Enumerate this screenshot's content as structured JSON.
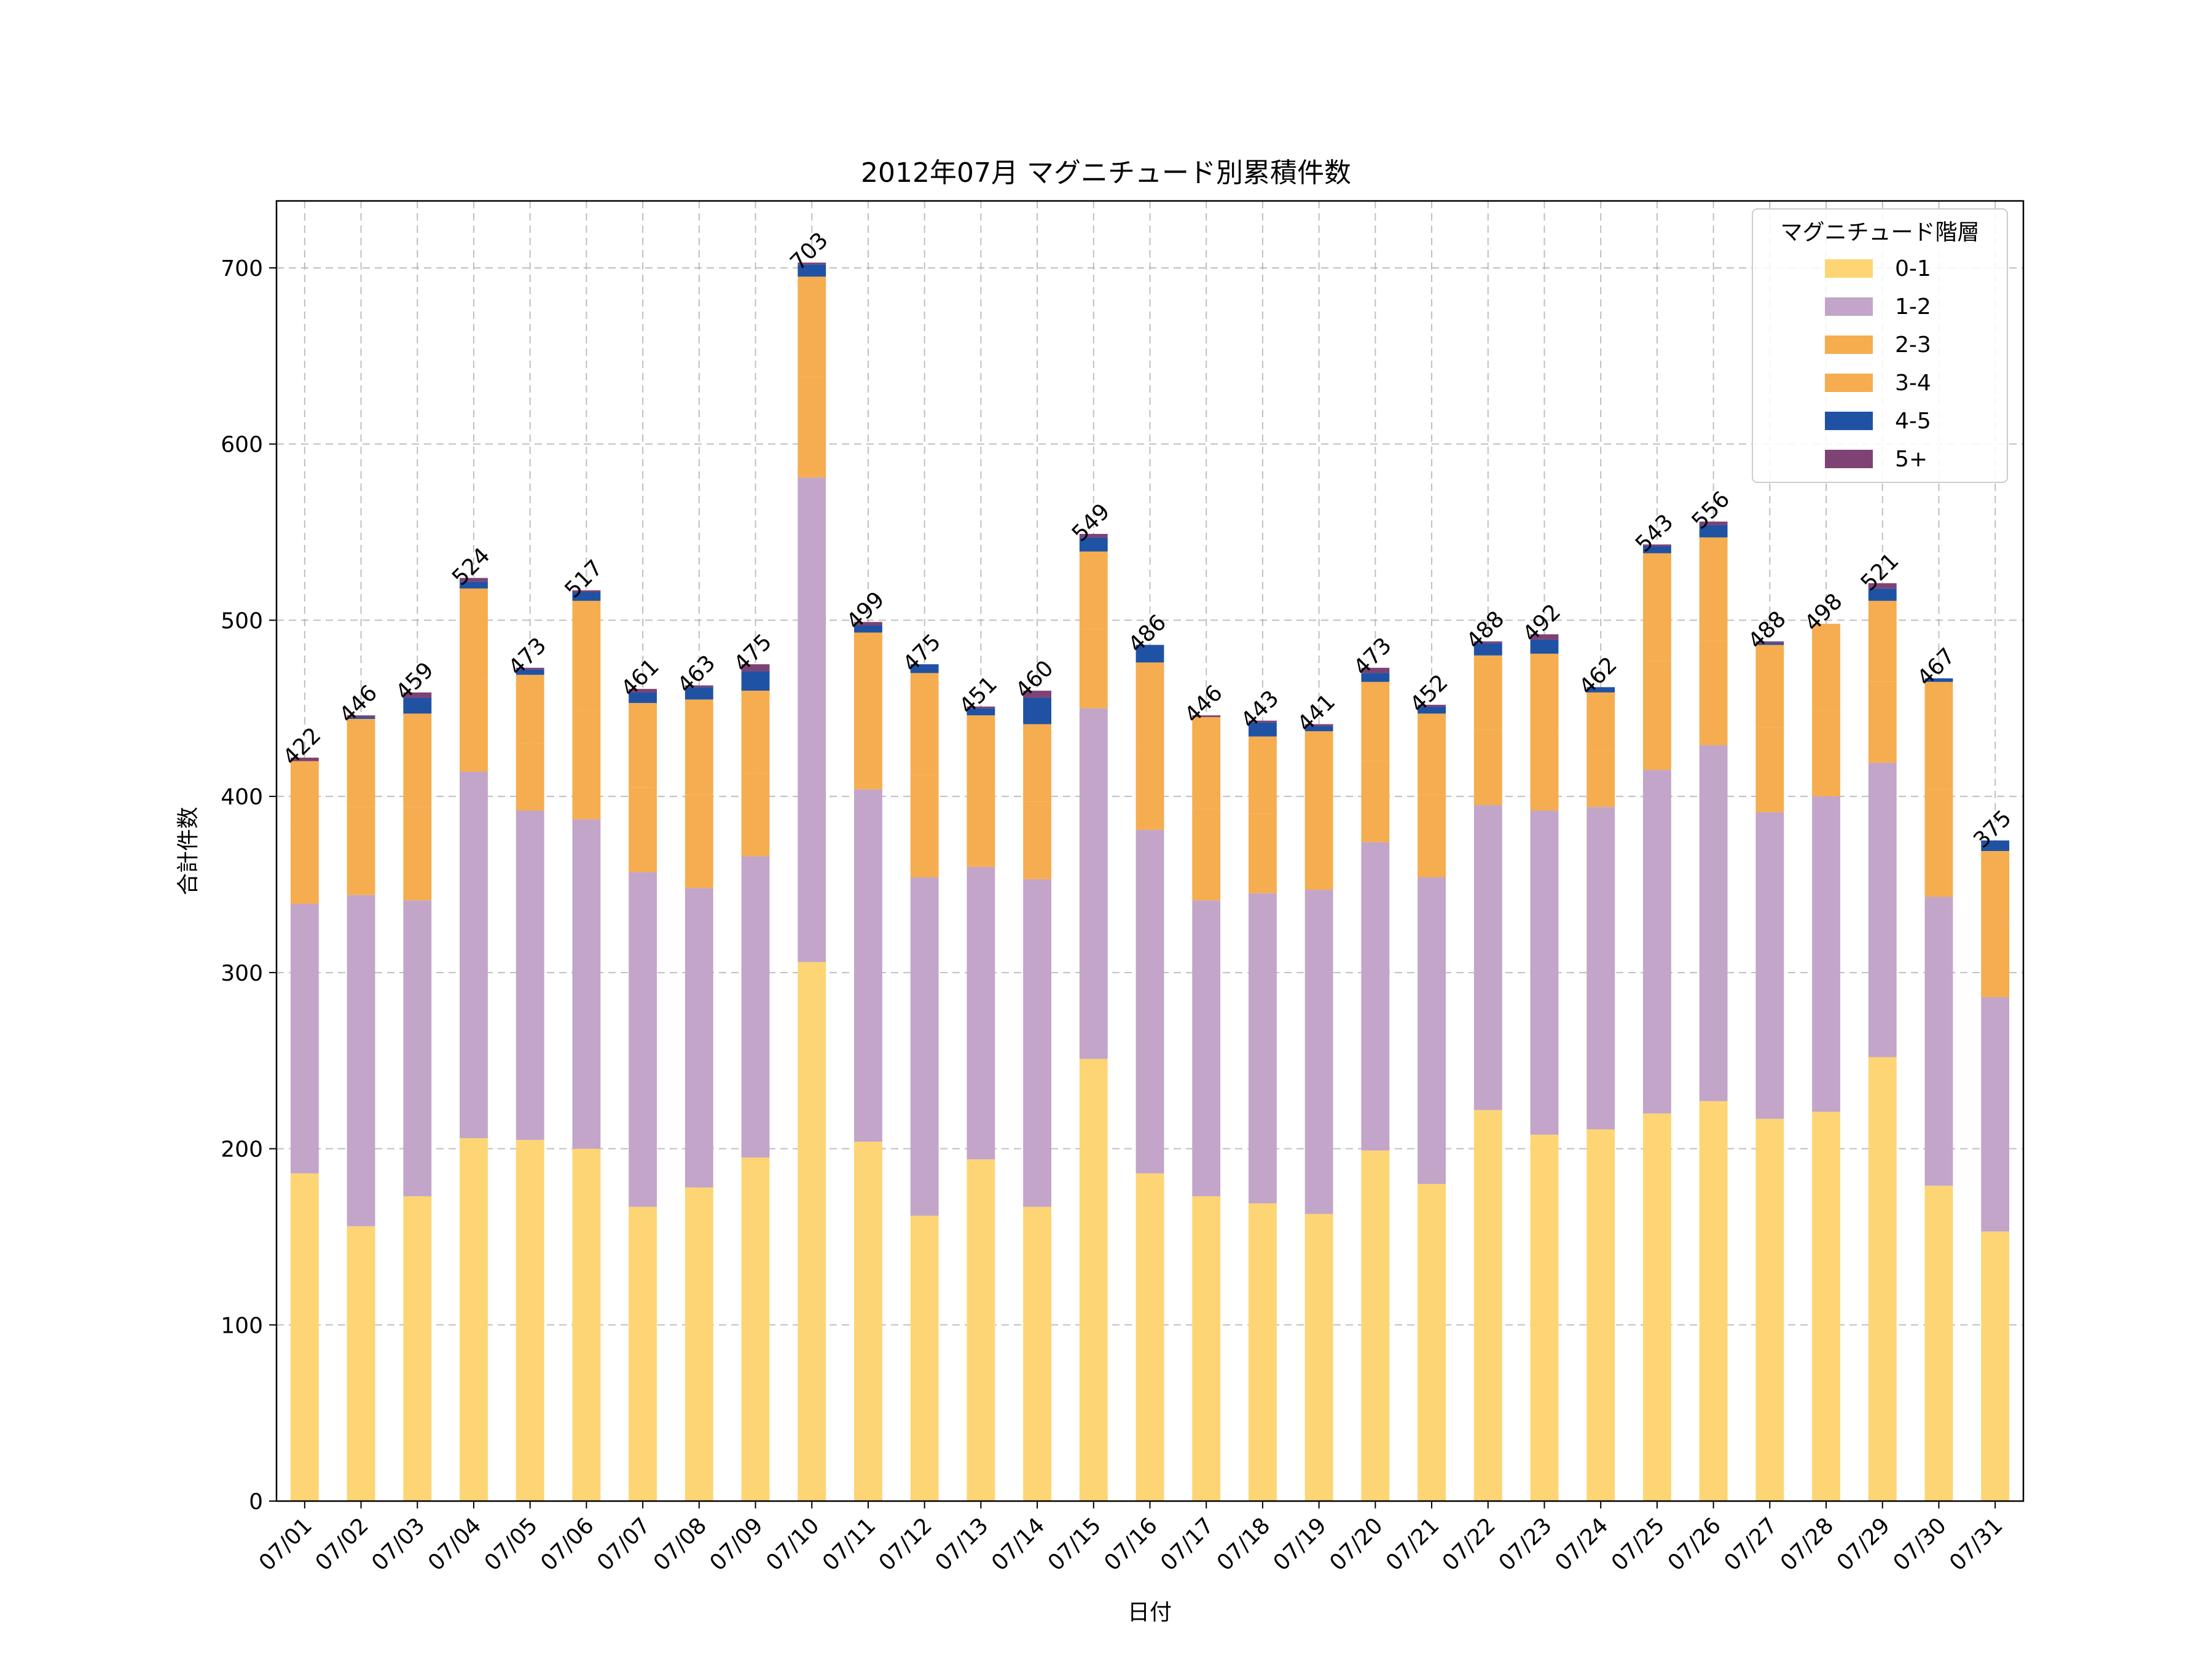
{
  "chart_data": {
    "type": "bar",
    "stacked": true,
    "title": "2012年07月 マグニチュード別累積件数",
    "xlabel": "日付",
    "ylabel": "合計件数",
    "ylim": [
      0,
      738
    ],
    "yticks": [
      0,
      100,
      200,
      300,
      400,
      500,
      600,
      700
    ],
    "grid": true,
    "legend": {
      "title": "マグニチュード階層",
      "placement": "top-right"
    },
    "categories": [
      "07/01",
      "07/02",
      "07/03",
      "07/04",
      "07/05",
      "07/06",
      "07/07",
      "07/08",
      "07/09",
      "07/10",
      "07/11",
      "07/12",
      "07/13",
      "07/14",
      "07/15",
      "07/16",
      "07/17",
      "07/18",
      "07/19",
      "07/20",
      "07/21",
      "07/22",
      "07/23",
      "07/24",
      "07/25",
      "07/26",
      "07/27",
      "07/28",
      "07/29",
      "07/30",
      "07/31"
    ],
    "series": [
      {
        "name": "0-1",
        "color": "#FDD574",
        "values": [
          186,
          156,
          173,
          206,
          205,
          200,
          167,
          178,
          195,
          306,
          204,
          162,
          194,
          167,
          251,
          186,
          173,
          169,
          163,
          199,
          180,
          222,
          208,
          211,
          220,
          227,
          217,
          221,
          252,
          179,
          153
        ]
      },
      {
        "name": "1-2",
        "color": "#C2A5C9",
        "values": [
          153,
          188,
          168,
          208,
          187,
          187,
          190,
          170,
          171,
          275,
          200,
          192,
          166,
          186,
          199,
          195,
          168,
          176,
          184,
          175,
          174,
          173,
          184,
          183,
          195,
          202,
          174,
          179,
          167,
          164,
          133
        ]
      },
      {
        "name": "2-3",
        "color": "#F5AD50",
        "values": [
          41,
          50,
          53,
          52,
          38,
          62,
          48,
          53,
          47,
          57,
          44,
          58,
          43,
          44,
          45,
          48,
          52,
          45,
          45,
          46,
          47,
          43,
          45,
          32,
          62,
          59,
          48,
          49,
          46,
          61,
          42
        ]
      },
      {
        "name": "3-4",
        "color": "#F5AD50",
        "values": [
          40,
          50,
          53,
          52,
          39,
          62,
          48,
          54,
          47,
          57,
          45,
          58,
          43,
          44,
          44,
          47,
          52,
          44,
          45,
          45,
          46,
          42,
          44,
          33,
          61,
          59,
          47,
          49,
          46,
          61,
          41
        ]
      },
      {
        "name": "4-5",
        "color": "#2052A4",
        "values": [
          0,
          1,
          9,
          4,
          3,
          5,
          6,
          7,
          11,
          7,
          4,
          5,
          4,
          15,
          8,
          10,
          0,
          8,
          3,
          5,
          4,
          7,
          8,
          3,
          4,
          7,
          1,
          0,
          7,
          2,
          6
        ]
      },
      {
        "name": "5+",
        "color": "#7E4274",
        "values": [
          2,
          1,
          3,
          2,
          1,
          1,
          2,
          1,
          4,
          1,
          2,
          0,
          1,
          4,
          2,
          0,
          1,
          1,
          1,
          3,
          1,
          1,
          3,
          0,
          1,
          2,
          1,
          0,
          3,
          0,
          0
        ]
      }
    ],
    "totals": [
      422,
      446,
      459,
      524,
      473,
      517,
      461,
      463,
      475,
      703,
      499,
      475,
      451,
      460,
      549,
      486,
      446,
      443,
      441,
      473,
      452,
      488,
      492,
      462,
      543,
      556,
      488,
      498,
      521,
      467,
      375
    ]
  }
}
